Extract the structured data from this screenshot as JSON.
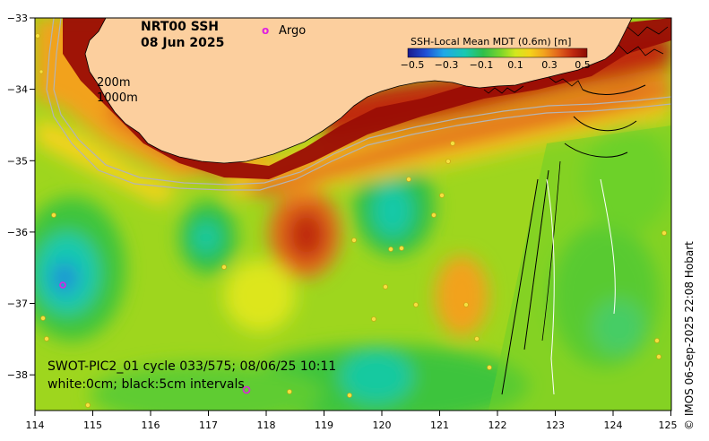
{
  "title": {
    "product": "NRT00 SSH",
    "date": "08 Jun 2025"
  },
  "legend": {
    "argo_symbol": "o",
    "argo_label": "Argo"
  },
  "colorbar": {
    "label": "SSH-Local Mean MDT (0.6m) [m]",
    "ticks": [
      "−0.5",
      "−0.3",
      "−0.1",
      "0.1",
      "0.3",
      "0.5"
    ],
    "colors": [
      "#1a1a8c",
      "#1f4fd6",
      "#20a8e8",
      "#19c9b0",
      "#2fbf4a",
      "#7dd62a",
      "#d2e81e",
      "#f4d31a",
      "#f2a21e",
      "#e2641c",
      "#c0290f",
      "#8c0c05"
    ]
  },
  "isobaths": [
    "200m",
    "1000m"
  ],
  "swot": {
    "line1": "SWOT-PIC2_01 cycle 033/575; 08/06/25 10:11",
    "line2": "white:0cm; black:5cm intervals"
  },
  "axes": {
    "x_ticks": [
      "114",
      "115",
      "116",
      "117",
      "118",
      "119",
      "120",
      "121",
      "122",
      "123",
      "124",
      "125"
    ],
    "y_ticks": [
      "−33",
      "−34",
      "−35",
      "−36",
      "−37",
      "−38"
    ],
    "lon_range": [
      114,
      125
    ],
    "lat_range": [
      -38.5,
      -33
    ]
  },
  "credit": "© IMOS 06-Sep-2025 22:08 Hobart",
  "colors": {
    "land": "#fccf9e",
    "argo": "#e020e0",
    "isobath": "#b0b0b0"
  }
}
